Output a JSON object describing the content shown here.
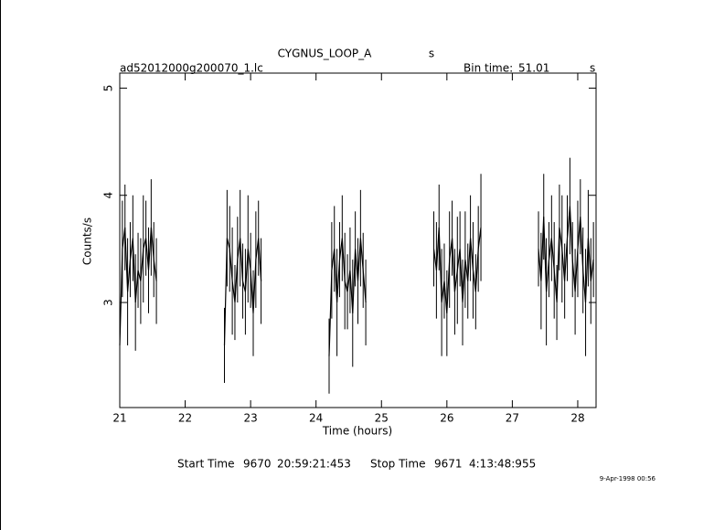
{
  "chart_data": {
    "type": "line",
    "title": "CYGNUS_LOOP_A",
    "title_unit": "s",
    "file": "ad52012000g200070_1.lc",
    "bin_label": "Bin time:",
    "bin_value": "51.01",
    "bin_unit": "s",
    "x_label": "Time (hours)",
    "y_label": "Counts/s",
    "start_label": "Start Time",
    "start_day": "9670",
    "start_clock": "20:59:21:453",
    "stop_label": "Stop Time",
    "stop_day": "9671",
    "stop_clock": "4:13:48:955",
    "date": "9-Apr-1998 00:56",
    "color": "#000000",
    "xlim": [
      21,
      28.28
    ],
    "ylim": [
      2.02,
      5.14
    ],
    "xticks": [
      21,
      22,
      23,
      24,
      25,
      26,
      27,
      28
    ],
    "yticks": [
      3,
      4,
      5
    ],
    "x": [
      21,
      21.04,
      21.08,
      21.12,
      21.16,
      21.2,
      21.24,
      21.28,
      21.32,
      21.36,
      21.4,
      21.44,
      21.48,
      21.52,
      21.56,
      22.1,
      22.6,
      22.64,
      22.68,
      22.72,
      22.76,
      22.8,
      22.84,
      22.88,
      22.92,
      22.96,
      23,
      23.04,
      23.08,
      23.12,
      23.16,
      23.7,
      24.2,
      24.24,
      24.28,
      24.32,
      24.36,
      24.4,
      24.44,
      24.48,
      24.52,
      24.56,
      24.6,
      24.64,
      24.68,
      24.72,
      24.76,
      25.3,
      25.8,
      25.84,
      25.88,
      25.92,
      25.96,
      26,
      26.04,
      26.08,
      26.12,
      26.16,
      26.2,
      26.24,
      26.28,
      26.32,
      26.36,
      26.4,
      26.44,
      26.48,
      26.52,
      27,
      27.4,
      27.44,
      27.48,
      27.52,
      27.56,
      27.6,
      27.64,
      27.68,
      27.72,
      27.76,
      27.8,
      27.84,
      27.88,
      27.92,
      27.96,
      28,
      28.04,
      28.08,
      28.12,
      28.16,
      28.2,
      28.24
    ],
    "values": [
      2.6,
      3.5,
      3.7,
      3.1,
      3.4,
      3.6,
      3.0,
      3.3,
      3.2,
      3.5,
      3.6,
      3.3,
      3.7,
      3.4,
      3.2,
      null,
      2.6,
      3.6,
      3.5,
      3.2,
      3.0,
      3.4,
      3.6,
      3.2,
      3.1,
      3.5,
      3.3,
      2.9,
      3.4,
      3.6,
      3.2,
      null,
      2.5,
      3.3,
      3.5,
      3.0,
      3.4,
      3.6,
      3.2,
      3.1,
      3.3,
      2.9,
      3.5,
      3.2,
      3.6,
      3.3,
      3.0,
      null,
      3.5,
      3.3,
      3.7,
      3.0,
      3.2,
      2.9,
      3.4,
      3.6,
      3.1,
      3.3,
      3.5,
      3.0,
      3.4,
      3.2,
      3.6,
      3.3,
      3.1,
      3.5,
      3.7,
      null,
      3.5,
      3.2,
      3.8,
      3.1,
      3.4,
      3.6,
      3.3,
      3.0,
      3.7,
      3.5,
      3.2,
      3.6,
      3.9,
      3.4,
      3.1,
      3.5,
      3.8,
      3.3,
      3.0,
      3.6,
      3.2,
      3.4
    ],
    "errors": [
      0.35,
      0.45,
      0.4,
      0.5,
      0.35,
      0.4,
      0.45,
      0.35,
      0.4,
      0.5,
      0.35,
      0.4,
      0.45,
      0.35,
      0.4,
      null,
      0.35,
      0.45,
      0.4,
      0.5,
      0.35,
      0.4,
      0.45,
      0.35,
      0.4,
      0.5,
      0.35,
      0.4,
      0.45,
      0.35,
      0.4,
      null,
      0.35,
      0.45,
      0.4,
      0.5,
      0.35,
      0.4,
      0.45,
      0.35,
      0.4,
      0.5,
      0.35,
      0.4,
      0.45,
      0.35,
      0.4,
      null,
      0.35,
      0.45,
      0.4,
      0.5,
      0.35,
      0.4,
      0.45,
      0.35,
      0.4,
      0.5,
      0.35,
      0.4,
      0.45,
      0.35,
      0.4,
      0.45,
      0.35,
      0.4,
      0.5,
      null,
      0.35,
      0.45,
      0.4,
      0.5,
      0.35,
      0.4,
      0.45,
      0.35,
      0.4,
      0.5,
      0.35,
      0.4,
      0.45,
      0.35,
      0.4,
      0.45,
      0.35,
      0.4,
      0.5,
      0.45,
      0.4,
      0.35
    ]
  }
}
